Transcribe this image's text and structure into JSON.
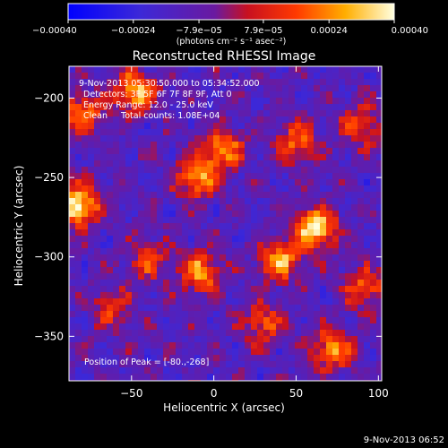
{
  "chart_data": {
    "type": "heatmap",
    "title": "Reconstructed RHESSI Image",
    "xlabel": "Heliocentric X (arcsec)",
    "ylabel": "Heliocentric Y (arcsec)",
    "xlim": [
      -88,
      102
    ],
    "ylim": [
      -378,
      -180
    ],
    "x_ticks": [
      -50,
      0,
      50,
      100
    ],
    "x_tick_labels": [
      "−50",
      "0",
      "50",
      "100"
    ],
    "y_ticks": [
      -200,
      -250,
      -300,
      -350
    ],
    "y_tick_labels": [
      "−200",
      "−250",
      "−300",
      "−350"
    ],
    "colorbar": {
      "range": [
        -0.0004,
        0.0004
      ],
      "ticks": [
        -0.0004,
        -0.00024,
        -7.9e-05,
        7.9e-05,
        0.00024,
        0.0004
      ],
      "tick_labels": [
        "−0.00040",
        "−0.00024",
        "−7.9e−05",
        "7.9e−05",
        "0.00024",
        "0.00040"
      ],
      "units": "(photons cm⁻² s⁻¹ asec⁻²)",
      "colormap": "blue-purple-red-yellow-white"
    },
    "annotations": [
      "9-Nov-2013 05:30:50.000 to 05:34:52.000",
      "Detectors: 3F 5F 6F 7F 8F 9F, Att 0",
      "Energy Range: 12.0 - 25.0 keV",
      "Clean     Total counts: 1.08E+04"
    ],
    "peak_label": "Position of Peak = [-80.,-268]",
    "footer": "9-Nov-2013 06:52",
    "peak_position": [
      -80,
      -268
    ],
    "sources": [
      {
        "x": -82,
        "y": -268,
        "value": 0.0004
      },
      {
        "x": 62,
        "y": -282,
        "value": 0.00038
      },
      {
        "x": 40,
        "y": -302,
        "value": 0.00026
      },
      {
        "x": -48,
        "y": -196,
        "value": 0.0003
      },
      {
        "x": -10,
        "y": -250,
        "value": 0.00028
      },
      {
        "x": 5,
        "y": -232,
        "value": 0.00024
      },
      {
        "x": 50,
        "y": -228,
        "value": 0.0002
      },
      {
        "x": -80,
        "y": -210,
        "value": 0.00022
      },
      {
        "x": -8,
        "y": -310,
        "value": 0.00026
      },
      {
        "x": 72,
        "y": -358,
        "value": 0.00024
      },
      {
        "x": 30,
        "y": -342,
        "value": 0.00016
      },
      {
        "x": -40,
        "y": -302,
        "value": 0.00012
      },
      {
        "x": -62,
        "y": -332,
        "value": 0.0001
      },
      {
        "x": 90,
        "y": -218,
        "value": 0.00016
      },
      {
        "x": 92,
        "y": -320,
        "value": 0.00018
      }
    ]
  }
}
